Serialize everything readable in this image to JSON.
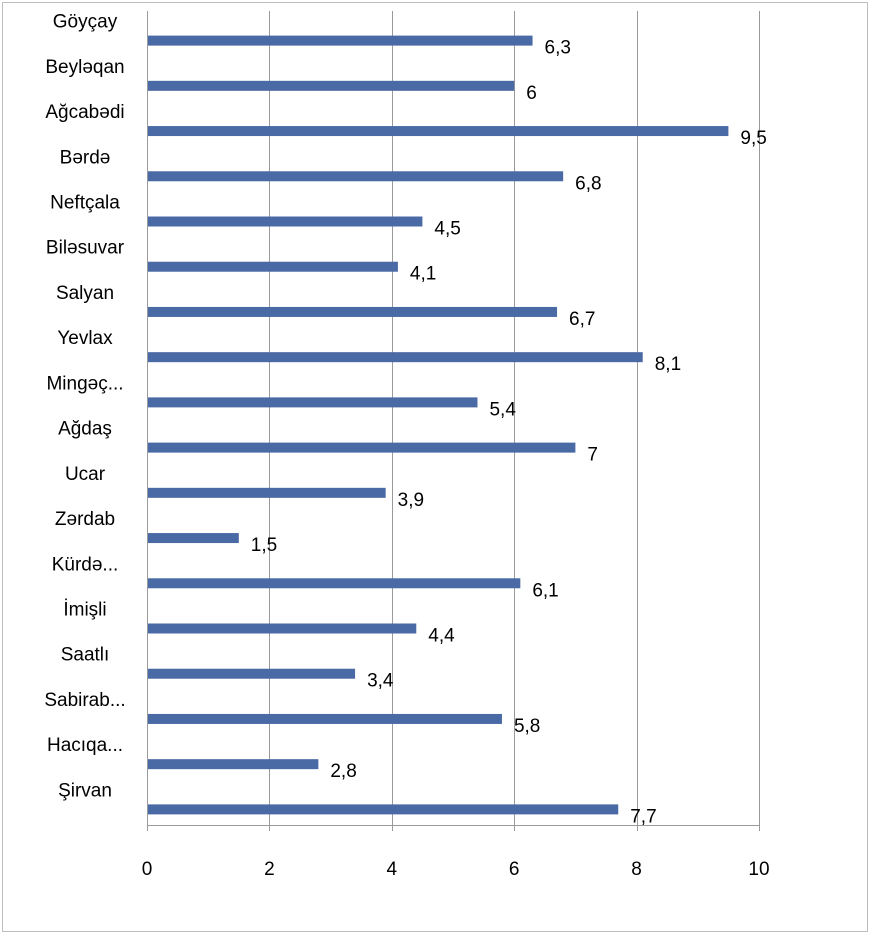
{
  "chart_data": {
    "type": "bar",
    "orientation": "horizontal",
    "categories": [
      "Göyçay",
      "Beyləqan",
      "Ağcabədi",
      "Bərdə",
      "Neftçala",
      "Biləsuvar",
      "Salyan",
      "Yevlax",
      "Mingəç...",
      "Ağdaş",
      "Ucar",
      "Zərdab",
      "Kürdə...",
      "İmişli",
      "Saatlı",
      "Sabirab...",
      "Hacıqa...",
      "Şirvan"
    ],
    "values": [
      6.3,
      6,
      9.5,
      6.8,
      4.5,
      4.1,
      6.7,
      8.1,
      5.4,
      7,
      3.9,
      1.5,
      6.1,
      4.4,
      3.4,
      5.8,
      2.8,
      7.7
    ],
    "data_labels": [
      "6,3",
      "6",
      "9,5",
      "6,8",
      "4,5",
      "4,1",
      "6,7",
      "8,1",
      "5,4",
      "7",
      "3,9",
      "1,5",
      "6,1",
      "4,4",
      "3,4",
      "5,8",
      "2,8",
      "7,7"
    ],
    "xlim": [
      0,
      10
    ],
    "x_ticks": [
      0,
      2,
      4,
      6,
      8,
      10
    ],
    "x_tick_labels": [
      "0",
      "2",
      "4",
      "6",
      "8",
      "10"
    ],
    "grid": true,
    "legend": "none",
    "title": "",
    "xlabel": "",
    "ylabel": "",
    "colors": {
      "bar": "#4a6aa5"
    }
  }
}
